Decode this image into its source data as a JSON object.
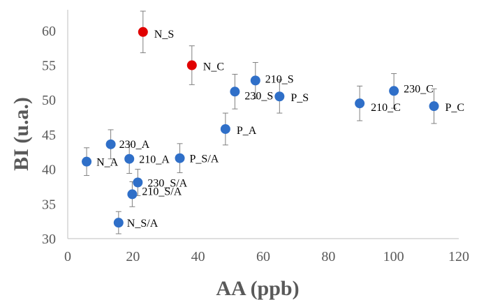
{
  "chart_data": {
    "type": "scatter",
    "xlabel": "AA (ppb)",
    "ylabel": "BI (u.a.)",
    "xlim": [
      0,
      120
    ],
    "ylim": [
      30,
      63
    ],
    "xticks": [
      0,
      20,
      40,
      60,
      80,
      100,
      120
    ],
    "yticks": [
      30,
      35,
      40,
      45,
      50,
      55,
      60
    ],
    "grid": false,
    "colors": {
      "default": "#2f6fc8",
      "highlight": "#e00000",
      "error_bar": "#7f7f7f",
      "axis": "#bfbfbf",
      "text": "#595959"
    },
    "points": [
      {
        "label": "N_S",
        "x": 23.1,
        "y": 59.8,
        "err": 3.0,
        "color": "highlight"
      },
      {
        "label": "N_C",
        "x": 38.1,
        "y": 55.0,
        "err": 2.8,
        "color": "highlight"
      },
      {
        "label": "210_S",
        "x": 57.6,
        "y": 52.8,
        "err": 2.6,
        "color": "default"
      },
      {
        "label": "230_S",
        "x": 51.3,
        "y": 51.2,
        "err": 2.5,
        "color": "default"
      },
      {
        "label": "P_S",
        "x": 65.0,
        "y": 50.5,
        "err": 2.4,
        "color": "default"
      },
      {
        "label": "230_C",
        "x": 100.1,
        "y": 51.3,
        "err": 2.5,
        "color": "default"
      },
      {
        "label": "210_C",
        "x": 89.6,
        "y": 49.5,
        "err": 2.5,
        "color": "default"
      },
      {
        "label": "P_C",
        "x": 112.4,
        "y": 49.1,
        "err": 2.5,
        "color": "default"
      },
      {
        "label": "P_A",
        "x": 48.4,
        "y": 45.8,
        "err": 2.3,
        "color": "default"
      },
      {
        "label": "230_A",
        "x": 13.2,
        "y": 43.6,
        "err": 2.1,
        "color": "default"
      },
      {
        "label": "210_A",
        "x": 18.9,
        "y": 41.5,
        "err": 2.1,
        "color": "default"
      },
      {
        "label": "N_A",
        "x": 5.8,
        "y": 41.1,
        "err": 2.0,
        "color": "default"
      },
      {
        "label": "P_S/A",
        "x": 34.4,
        "y": 41.6,
        "err": 2.1,
        "color": "default"
      },
      {
        "label": "230_S/A",
        "x": 21.5,
        "y": 38.1,
        "err": 1.9,
        "color": "default"
      },
      {
        "label": "210_S/A",
        "x": 19.8,
        "y": 36.4,
        "err": 1.8,
        "color": "default"
      },
      {
        "label": "N_S/A",
        "x": 15.6,
        "y": 32.3,
        "err": 1.6,
        "color": "default"
      }
    ]
  }
}
